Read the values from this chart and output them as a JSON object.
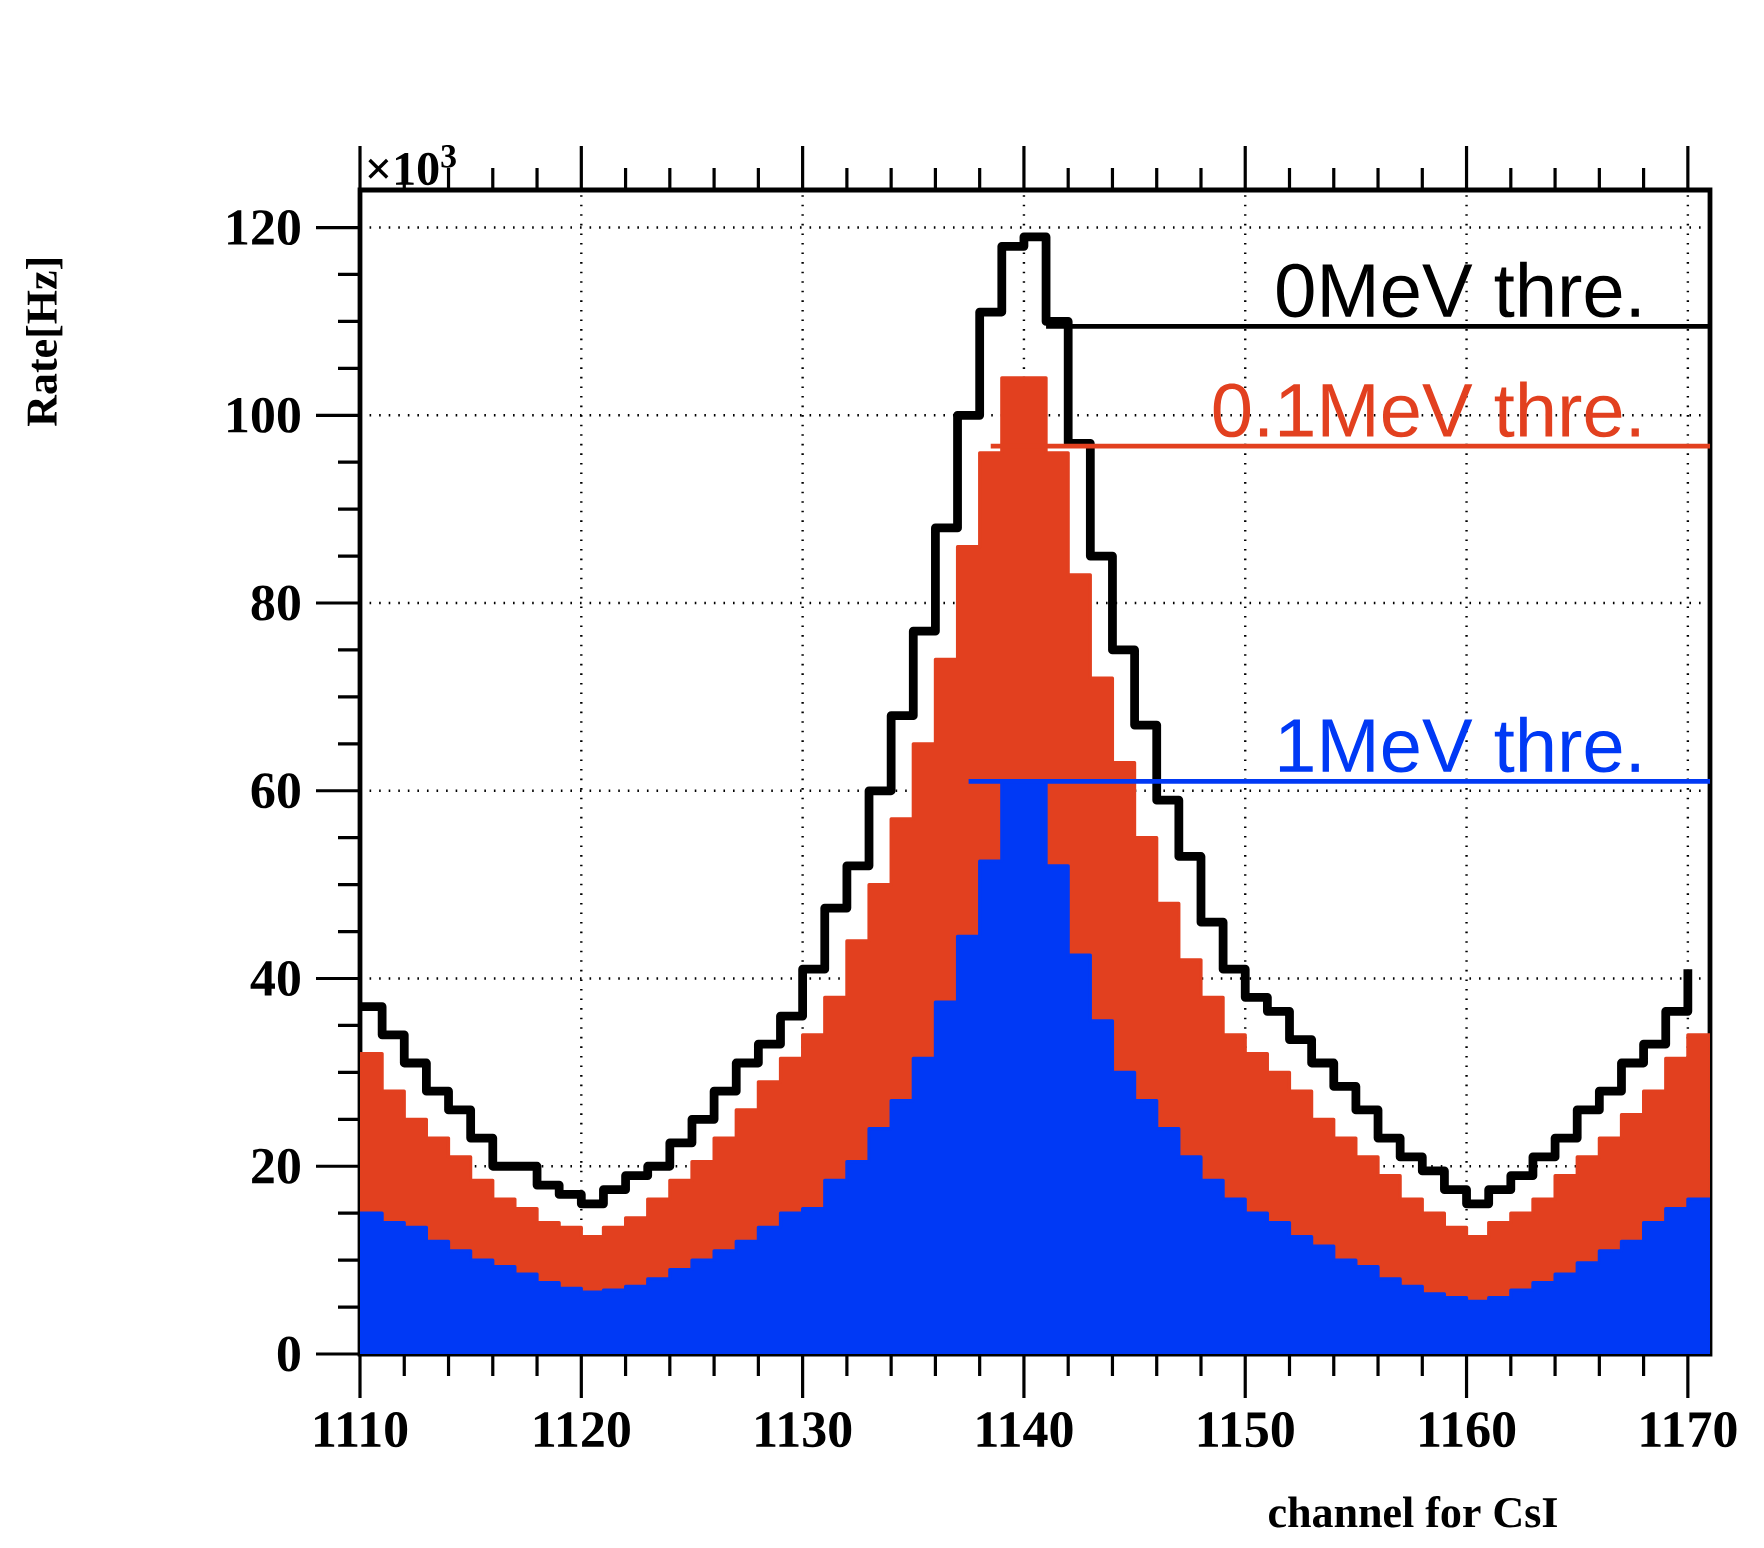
{
  "chart_data": {
    "type": "histogram",
    "ylabel": "Rate[Hz]",
    "xlabel": "channel for CsI",
    "annotations": [
      "×10$^{3}$"
    ],
    "bins": [
      1110,
      1111,
      1112,
      1113,
      1114,
      1115,
      1116,
      1117,
      1118,
      1119,
      1120,
      1121,
      1122,
      1123,
      1124,
      1125,
      1126,
      1127,
      1128,
      1129,
      1130,
      1131,
      1132,
      1133,
      1134,
      1135,
      1136,
      1137,
      1138,
      1139,
      1140,
      1141,
      1142,
      1143,
      1144,
      1145,
      1146,
      1147,
      1148,
      1149,
      1150,
      1151,
      1152,
      1153,
      1154,
      1155,
      1156,
      1157,
      1158,
      1159,
      1160,
      1161,
      1162,
      1163,
      1164,
      1165,
      1166,
      1167,
      1168,
      1169,
      1170,
      1171
    ],
    "series": [
      {
        "name": "0MeV thre.",
        "type": "step",
        "color": "#000000",
        "x": [
          1110,
          1111,
          1112,
          1113,
          1114,
          1115,
          1116,
          1117,
          1118,
          1119,
          1120,
          1121,
          1122,
          1123,
          1124,
          1125,
          1126,
          1127,
          1128,
          1129,
          1130,
          1131,
          1132,
          1133,
          1134,
          1135,
          1136,
          1137,
          1138,
          1139,
          1140,
          1141,
          1142,
          1143,
          1144,
          1145,
          1146,
          1147,
          1148,
          1149,
          1150,
          1151,
          1152,
          1153,
          1154,
          1155,
          1156,
          1157,
          1158,
          1159,
          1160,
          1161,
          1162,
          1163,
          1164,
          1165,
          1166,
          1167,
          1168,
          1169,
          1170
        ],
        "values": [
          37,
          34,
          31,
          28,
          26,
          23,
          20,
          20,
          18,
          17,
          16,
          17.5,
          19,
          20,
          22.5,
          25,
          28,
          31,
          33,
          36,
          41,
          47.5,
          52,
          60,
          68,
          77,
          88,
          100,
          111,
          118,
          119,
          110,
          97,
          85,
          75,
          67,
          59,
          53,
          46,
          41,
          38,
          36.5,
          33.5,
          31,
          28.5,
          26,
          23,
          21,
          19.5,
          17.5,
          16,
          17.5,
          19,
          21,
          23,
          26,
          28,
          31,
          33,
          36.5,
          41
        ]
      },
      {
        "name": "0.1MeV thre.",
        "color": "#e2401f",
        "values": [
          32,
          28,
          25,
          23,
          21,
          18.5,
          16.5,
          15.5,
          14,
          13.5,
          12.5,
          13.5,
          14.5,
          16.5,
          18.5,
          20.5,
          23,
          26,
          29,
          31.5,
          34,
          38,
          44,
          50,
          57,
          65,
          74,
          86,
          96,
          104,
          104,
          96,
          83,
          72,
          63,
          55,
          48,
          42,
          38,
          34,
          32,
          30,
          28,
          25,
          23,
          21,
          19,
          16.5,
          15,
          13.5,
          12.5,
          14,
          15,
          16.5,
          19,
          21,
          23,
          25.5,
          28,
          31.5,
          34
        ]
      },
      {
        "name": "1MeV thre.",
        "color": "#0039f5",
        "values": [
          15,
          14,
          13.5,
          12,
          11,
          10,
          9.3,
          8.5,
          7.6,
          7,
          6.6,
          6.8,
          7.2,
          8,
          9,
          10,
          11,
          12,
          13.5,
          15,
          15.5,
          18.5,
          20.5,
          24,
          27,
          31.5,
          37.5,
          44.5,
          52.5,
          61,
          61,
          52,
          42.5,
          35.5,
          30,
          27,
          24,
          21,
          18.5,
          16.5,
          15,
          14,
          12.5,
          11.5,
          10,
          9.3,
          8,
          7.2,
          6.4,
          6,
          5.6,
          6,
          6.8,
          7.6,
          8.5,
          9.7,
          11,
          12,
          14,
          15.5,
          16.5
        ]
      }
    ],
    "xlim": [
      1110,
      1171
    ],
    "ylim": [
      0,
      124
    ],
    "xticks": [
      1110,
      1120,
      1130,
      1140,
      1150,
      1160,
      1170
    ],
    "yticks": [
      0,
      20,
      40,
      60,
      80,
      100,
      120
    ],
    "grid": true,
    "legend": "top right"
  }
}
